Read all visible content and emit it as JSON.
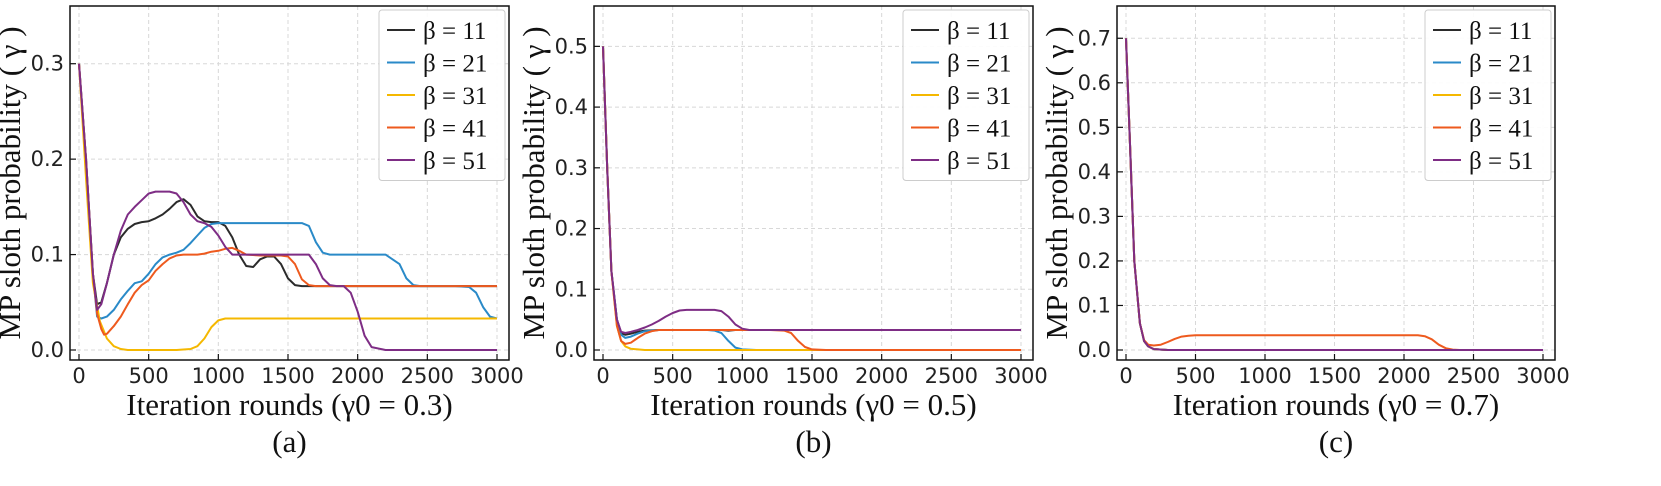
{
  "chart_data": [
    {
      "type": "line",
      "caption": "(a)",
      "xlabel_main": "Iteration rounds",
      "xlabel_sub": "(γ0 = 0.3)",
      "ylabel": "MP sloth probability ( γ )",
      "xlim": [
        0,
        3000
      ],
      "ylim": [
        0,
        0.35
      ],
      "xticks": [
        0,
        500,
        1000,
        1500,
        2000,
        2500,
        3000
      ],
      "yticks": [
        0.0,
        0.1,
        0.2,
        0.3
      ],
      "ytick_labels": [
        "0.0",
        "0.1",
        "0.2",
        "0.3"
      ],
      "legend_position": "top-right",
      "series": [
        {
          "name": "β = 11",
          "color": "#2b2b2b",
          "x": [
            0,
            50,
            100,
            130,
            160,
            200,
            250,
            300,
            350,
            400,
            450,
            500,
            550,
            600,
            650,
            700,
            750,
            800,
            850,
            900,
            950,
            1000,
            1050,
            1100,
            1150,
            1200,
            1250,
            1300,
            1350,
            1400,
            1450,
            1500,
            1550,
            1600,
            1650,
            1700,
            1750,
            1800,
            2000,
            2500,
            3000
          ],
          "y": [
            0.3,
            0.2,
            0.08,
            0.048,
            0.05,
            0.07,
            0.1,
            0.118,
            0.127,
            0.132,
            0.134,
            0.135,
            0.138,
            0.142,
            0.148,
            0.155,
            0.158,
            0.152,
            0.14,
            0.135,
            0.134,
            0.134,
            0.13,
            0.118,
            0.1,
            0.088,
            0.087,
            0.095,
            0.098,
            0.098,
            0.09,
            0.075,
            0.068,
            0.067,
            0.067,
            0.067,
            0.067,
            0.067,
            0.067,
            0.067,
            0.067
          ]
        },
        {
          "name": "β = 21",
          "color": "#2a8ac8",
          "x": [
            0,
            50,
            100,
            130,
            160,
            200,
            250,
            300,
            350,
            400,
            450,
            500,
            550,
            600,
            650,
            700,
            750,
            800,
            850,
            900,
            950,
            1000,
            1100,
            1200,
            1300,
            1400,
            1500,
            1550,
            1600,
            1650,
            1700,
            1750,
            1800,
            2000,
            2200,
            2300,
            2350,
            2400,
            2450,
            2700,
            2800,
            2850,
            2900,
            2950,
            3000
          ],
          "y": [
            0.3,
            0.2,
            0.08,
            0.035,
            0.033,
            0.035,
            0.042,
            0.053,
            0.062,
            0.07,
            0.072,
            0.08,
            0.09,
            0.097,
            0.1,
            0.102,
            0.105,
            0.112,
            0.12,
            0.128,
            0.132,
            0.133,
            0.133,
            0.133,
            0.133,
            0.133,
            0.133,
            0.133,
            0.133,
            0.13,
            0.113,
            0.102,
            0.1,
            0.1,
            0.1,
            0.09,
            0.075,
            0.068,
            0.067,
            0.067,
            0.066,
            0.06,
            0.045,
            0.035,
            0.033
          ]
        },
        {
          "name": "β = 31",
          "color": "#f5b800",
          "x": [
            0,
            50,
            100,
            150,
            200,
            250,
            300,
            350,
            400,
            500,
            600,
            700,
            800,
            850,
            900,
            950,
            1000,
            1050,
            1100,
            1200,
            1500,
            2000,
            2500,
            3000
          ],
          "y": [
            0.3,
            0.18,
            0.07,
            0.03,
            0.012,
            0.004,
            0.001,
            0.0,
            0.0,
            0.0,
            0.0,
            0.0,
            0.001,
            0.004,
            0.012,
            0.024,
            0.031,
            0.033,
            0.033,
            0.033,
            0.033,
            0.033,
            0.033,
            0.033
          ]
        },
        {
          "name": "β = 41",
          "color": "#ee5a1e",
          "x": [
            0,
            50,
            100,
            130,
            160,
            180,
            200,
            250,
            300,
            350,
            400,
            450,
            500,
            550,
            600,
            650,
            700,
            750,
            800,
            850,
            900,
            950,
            1000,
            1050,
            1100,
            1150,
            1200,
            1300,
            1400,
            1450,
            1500,
            1550,
            1600,
            1650,
            1700,
            1800,
            2000,
            2500,
            3000
          ],
          "y": [
            0.3,
            0.2,
            0.08,
            0.038,
            0.022,
            0.016,
            0.017,
            0.025,
            0.035,
            0.048,
            0.06,
            0.068,
            0.073,
            0.083,
            0.09,
            0.096,
            0.099,
            0.1,
            0.1,
            0.1,
            0.101,
            0.103,
            0.104,
            0.106,
            0.107,
            0.104,
            0.1,
            0.099,
            0.099,
            0.099,
            0.098,
            0.09,
            0.074,
            0.068,
            0.067,
            0.067,
            0.067,
            0.067,
            0.067
          ]
        },
        {
          "name": "β = 51",
          "color": "#7e2d85",
          "x": [
            0,
            50,
            100,
            130,
            160,
            200,
            250,
            300,
            350,
            400,
            450,
            500,
            550,
            600,
            650,
            700,
            750,
            800,
            850,
            900,
            950,
            1000,
            1050,
            1100,
            1150,
            1200,
            1300,
            1500,
            1600,
            1650,
            1700,
            1750,
            1800,
            1850,
            1900,
            1950,
            2000,
            2050,
            2100,
            2200,
            2500,
            3000
          ],
          "y": [
            0.3,
            0.2,
            0.08,
            0.042,
            0.048,
            0.07,
            0.1,
            0.125,
            0.142,
            0.15,
            0.157,
            0.164,
            0.166,
            0.166,
            0.166,
            0.164,
            0.155,
            0.142,
            0.135,
            0.133,
            0.129,
            0.12,
            0.108,
            0.1,
            0.1,
            0.1,
            0.1,
            0.1,
            0.1,
            0.1,
            0.09,
            0.075,
            0.068,
            0.067,
            0.067,
            0.06,
            0.04,
            0.015,
            0.003,
            0.0,
            0.0,
            0.0
          ]
        }
      ]
    },
    {
      "type": "line",
      "caption": "(b)",
      "xlabel_main": "Iteration rounds",
      "xlabel_sub": "(γ0 = 0.5)",
      "ylabel": "MP sloth probability ( γ )",
      "xlim": [
        0,
        3000
      ],
      "ylim": [
        0,
        0.55
      ],
      "xticks": [
        0,
        500,
        1000,
        1500,
        2000,
        2500,
        3000
      ],
      "yticks": [
        0.0,
        0.1,
        0.2,
        0.3,
        0.4,
        0.5
      ],
      "ytick_labels": [
        "0.0",
        "0.1",
        "0.2",
        "0.3",
        "0.4",
        "0.5"
      ],
      "legend_position": "top-right",
      "series": [
        {
          "name": "β = 11",
          "color": "#2b2b2b",
          "x": [
            0,
            30,
            60,
            100,
            130,
            160,
            200,
            250,
            300,
            400,
            500,
            600,
            700,
            800,
            850,
            900,
            950,
            1000,
            1050,
            1100,
            1500,
            2000,
            2500,
            3000
          ],
          "y": [
            0.5,
            0.3,
            0.13,
            0.05,
            0.028,
            0.025,
            0.027,
            0.03,
            0.032,
            0.033,
            0.033,
            0.033,
            0.033,
            0.033,
            0.033,
            0.032,
            0.033,
            0.033,
            0.033,
            0.033,
            0.033,
            0.033,
            0.033,
            0.033
          ]
        },
        {
          "name": "β = 21",
          "color": "#2a8ac8",
          "x": [
            0,
            30,
            60,
            100,
            130,
            160,
            200,
            250,
            300,
            400,
            500,
            600,
            700,
            750,
            800,
            850,
            900,
            950,
            1000,
            1100,
            1500,
            2000,
            3000
          ],
          "y": [
            0.5,
            0.3,
            0.13,
            0.05,
            0.025,
            0.02,
            0.022,
            0.027,
            0.031,
            0.033,
            0.033,
            0.033,
            0.033,
            0.033,
            0.032,
            0.028,
            0.015,
            0.004,
            0.001,
            0.0,
            0.0,
            0.0,
            0.0
          ]
        },
        {
          "name": "β = 31",
          "color": "#f5b800",
          "x": [
            0,
            30,
            60,
            100,
            130,
            160,
            200,
            250,
            300,
            400,
            500,
            1000,
            2000,
            3000
          ],
          "y": [
            0.5,
            0.3,
            0.13,
            0.04,
            0.015,
            0.006,
            0.002,
            0.001,
            0.0,
            0.0,
            0.0,
            0.0,
            0.0,
            0.0
          ]
        },
        {
          "name": "β = 41",
          "color": "#ee5a1e",
          "x": [
            0,
            30,
            60,
            100,
            130,
            160,
            200,
            250,
            300,
            350,
            400,
            500,
            700,
            900,
            1000,
            1100,
            1200,
            1300,
            1350,
            1400,
            1450,
            1500,
            1600,
            2000,
            3000
          ],
          "y": [
            0.5,
            0.3,
            0.13,
            0.04,
            0.015,
            0.01,
            0.012,
            0.02,
            0.027,
            0.031,
            0.033,
            0.033,
            0.033,
            0.033,
            0.033,
            0.033,
            0.033,
            0.032,
            0.028,
            0.015,
            0.005,
            0.001,
            0.0,
            0.0,
            0.0
          ]
        },
        {
          "name": "β = 51",
          "color": "#7e2d85",
          "x": [
            0,
            30,
            60,
            100,
            130,
            160,
            200,
            250,
            300,
            350,
            400,
            450,
            500,
            550,
            600,
            650,
            700,
            750,
            800,
            850,
            900,
            950,
            1000,
            1050,
            1100,
            1500,
            2000,
            3000
          ],
          "y": [
            0.5,
            0.3,
            0.13,
            0.05,
            0.03,
            0.028,
            0.03,
            0.033,
            0.037,
            0.042,
            0.048,
            0.055,
            0.061,
            0.065,
            0.066,
            0.066,
            0.066,
            0.066,
            0.066,
            0.064,
            0.055,
            0.042,
            0.035,
            0.033,
            0.033,
            0.033,
            0.033,
            0.033
          ]
        }
      ]
    },
    {
      "type": "line",
      "caption": "(c)",
      "xlabel_main": "Iteration rounds",
      "xlabel_sub": "(γ0 = 0.7)",
      "ylabel": "MP sloth probability ( γ )",
      "xlim": [
        0,
        3000
      ],
      "ylim": [
        0,
        0.75
      ],
      "xticks": [
        0,
        500,
        1000,
        1500,
        2000,
        2500,
        3000
      ],
      "yticks": [
        0.0,
        0.1,
        0.2,
        0.3,
        0.4,
        0.5,
        0.6,
        0.7
      ],
      "ytick_labels": [
        "0.0",
        "0.1",
        "0.2",
        "0.3",
        "0.4",
        "0.5",
        "0.6",
        "0.7"
      ],
      "legend_position": "top-right",
      "series": [
        {
          "name": "β = 11",
          "color": "#2b2b2b",
          "x": [
            0,
            30,
            60,
            100,
            130,
            160,
            200,
            300,
            1000,
            2000,
            3000
          ],
          "y": [
            0.7,
            0.45,
            0.2,
            0.06,
            0.02,
            0.008,
            0.002,
            0.0,
            0.0,
            0.0,
            0.0
          ]
        },
        {
          "name": "β = 21",
          "color": "#2a8ac8",
          "x": [
            0,
            30,
            60,
            100,
            130,
            160,
            200,
            300,
            1000,
            2000,
            3000
          ],
          "y": [
            0.7,
            0.45,
            0.2,
            0.06,
            0.02,
            0.008,
            0.002,
            0.0,
            0.0,
            0.0,
            0.0
          ]
        },
        {
          "name": "β = 31",
          "color": "#f5b800",
          "x": [
            0,
            30,
            60,
            100,
            130,
            160,
            200,
            300,
            1000,
            2000,
            3000
          ],
          "y": [
            0.7,
            0.45,
            0.2,
            0.06,
            0.02,
            0.008,
            0.002,
            0.0,
            0.0,
            0.0,
            0.0
          ]
        },
        {
          "name": "β = 41",
          "color": "#ee5a1e",
          "x": [
            0,
            30,
            60,
            100,
            130,
            160,
            200,
            250,
            300,
            350,
            400,
            450,
            500,
            600,
            1000,
            1500,
            2000,
            2100,
            2150,
            2200,
            2250,
            2300,
            2350,
            2400,
            3000
          ],
          "y": [
            0.7,
            0.45,
            0.2,
            0.06,
            0.022,
            0.012,
            0.01,
            0.012,
            0.018,
            0.025,
            0.03,
            0.032,
            0.033,
            0.033,
            0.033,
            0.033,
            0.033,
            0.033,
            0.031,
            0.024,
            0.012,
            0.004,
            0.001,
            0.0,
            0.0
          ]
        },
        {
          "name": "β = 51",
          "color": "#7e2d85",
          "x": [
            0,
            30,
            60,
            100,
            130,
            160,
            200,
            300,
            1000,
            2000,
            3000
          ],
          "y": [
            0.7,
            0.45,
            0.2,
            0.06,
            0.02,
            0.008,
            0.002,
            0.0,
            0.0,
            0.0,
            0.0
          ]
        }
      ]
    }
  ]
}
